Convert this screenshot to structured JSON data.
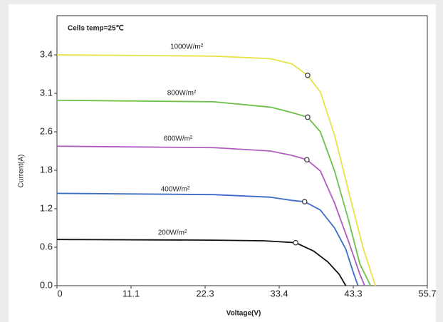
{
  "chart_data": {
    "type": "line",
    "annotation": "Cells temp=25℃",
    "xlabel": "Voltage(V)",
    "ylabel": "Current(A)",
    "xlim": [
      0,
      55.7
    ],
    "xticks": [
      0,
      11.1,
      22.3,
      33.4,
      43.3,
      55.7
    ],
    "ylim": [
      0,
      3.7
    ],
    "yticks": [
      {
        "value": 0,
        "label": "0.0"
      },
      0.6,
      1.2,
      1.8,
      2.6,
      3.1,
      3.4
    ],
    "series": [
      {
        "name": "1000W/m²",
        "color": "#e6e24a",
        "x": [
          0,
          23.6,
          32.1,
          35.1,
          37.2,
          38.9,
          40.8,
          42.7,
          45.0,
          47.0
        ],
        "values": [
          3.4,
          3.39,
          3.37,
          3.33,
          3.24,
          3.11,
          2.53,
          1.46,
          0.57,
          0
        ],
        "marker_x": 37.2,
        "marker_y": 3.24
      },
      {
        "name": "800W/m²",
        "color": "#6cc04a",
        "x": [
          0,
          23.6,
          32.1,
          35.1,
          37.2,
          38.9,
          40.8,
          42.7,
          44.4,
          46.2
        ],
        "values": [
          3.01,
          2.99,
          2.92,
          2.85,
          2.79,
          2.6,
          1.79,
          1.01,
          0.34,
          0
        ],
        "marker_x": 37.2,
        "marker_y": 2.79
      },
      {
        "name": "600W/m²",
        "color": "#b05cbf",
        "x": [
          0,
          23.6,
          32.1,
          35.1,
          37.1,
          38.9,
          40.8,
          42.7,
          44.4,
          45.2
        ],
        "values": [
          2.3,
          2.27,
          2.2,
          2.11,
          2.02,
          1.79,
          1.29,
          0.68,
          0.18,
          0
        ],
        "marker_x": 37.1,
        "marker_y": 2.02
      },
      {
        "name": "400W/m²",
        "color": "#3a6cc8",
        "x": [
          0,
          23.6,
          32.1,
          35.1,
          36.8,
          38.9,
          40.8,
          42.3,
          43.4,
          44.1
        ],
        "values": [
          1.44,
          1.42,
          1.38,
          1.33,
          1.31,
          1.18,
          0.9,
          0.57,
          0.18,
          0
        ],
        "marker_x": 36.8,
        "marker_y": 1.31
      },
      {
        "name": "200W/m²",
        "color": "#111111",
        "x": [
          0,
          23.6,
          31.1,
          35.6,
          38.0,
          39.9,
          41.4,
          42.3
        ],
        "values": [
          0.72,
          0.71,
          0.7,
          0.67,
          0.54,
          0.37,
          0.18,
          0
        ],
        "marker_x": 35.6,
        "marker_y": 0.67
      }
    ]
  }
}
